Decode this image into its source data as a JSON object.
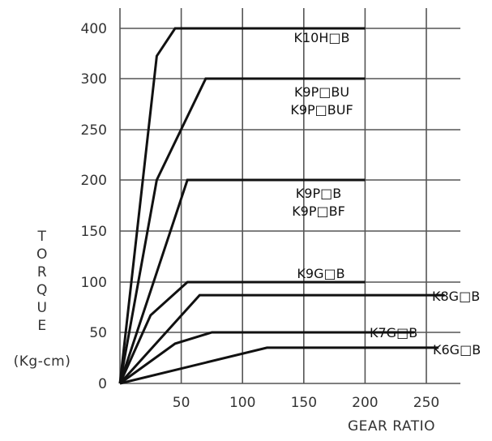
{
  "chart_data": {
    "type": "line",
    "xlabel": "GEAR RATIO",
    "ylabel_letters": [
      "T",
      "O",
      "R",
      "Q",
      "U",
      "E"
    ],
    "ylabel_unit": "(Kg-cm)",
    "x_ticks": [
      50,
      100,
      150,
      200,
      250
    ],
    "y_ticks": [
      {
        "value": 0,
        "label": "0"
      },
      {
        "value": 50,
        "label": "50"
      },
      {
        "value": 100,
        "label": "100"
      },
      {
        "value": 150,
        "label": "150"
      },
      {
        "value": 200,
        "label": "200"
      },
      {
        "value": 250,
        "label": "250"
      },
      {
        "value": 300,
        "label": "300"
      },
      {
        "value": 400,
        "label": "400"
      }
    ],
    "grid": true,
    "series": [
      {
        "name": "K10H□B",
        "label_lines": [
          "K10H□B"
        ],
        "points": [
          [
            0,
            0
          ],
          [
            30,
            345
          ],
          [
            45,
            400
          ],
          [
            200,
            400
          ]
        ]
      },
      {
        "name": "K9P□BU / K9P□BUF",
        "label_lines": [
          "K9P□BU",
          "K9P□BUF"
        ],
        "points": [
          [
            0,
            0
          ],
          [
            30,
            200
          ],
          [
            70,
            300
          ],
          [
            200,
            300
          ]
        ]
      },
      {
        "name": "K9P□B / K9P□BF",
        "label_lines": [
          "K9P□B",
          "K9P□BF"
        ],
        "points": [
          [
            0,
            0
          ],
          [
            55,
            200
          ],
          [
            200,
            200
          ]
        ]
      },
      {
        "name": "K9G□B",
        "label_lines": [
          "K9G□B"
        ],
        "points": [
          [
            0,
            0
          ],
          [
            25,
            67
          ],
          [
            55,
            100
          ],
          [
            200,
            100
          ]
        ]
      },
      {
        "name": "K8G□B",
        "label_lines": [
          "K8G□B"
        ],
        "points": [
          [
            0,
            0
          ],
          [
            65,
            87
          ],
          [
            265,
            87
          ]
        ]
      },
      {
        "name": "K7G□B",
        "label_lines": [
          "K7G□B"
        ],
        "points": [
          [
            0,
            0
          ],
          [
            45,
            39
          ],
          [
            75,
            50
          ],
          [
            240,
            50
          ]
        ]
      },
      {
        "name": "K6G□B",
        "label_lines": [
          "K6G□B"
        ],
        "points": [
          [
            0,
            0
          ],
          [
            120,
            35
          ],
          [
            260,
            35
          ]
        ]
      }
    ]
  }
}
